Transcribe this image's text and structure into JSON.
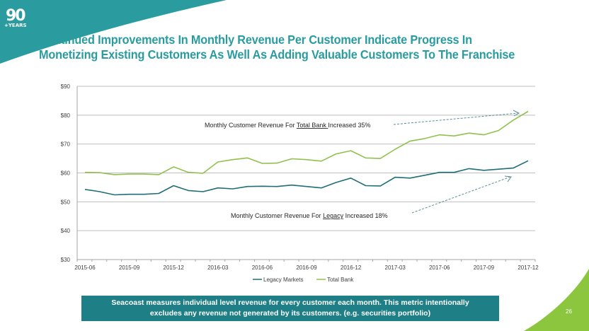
{
  "logo": {
    "number": "90",
    "suffix": "+YEARS"
  },
  "title": "Continued Improvements In Monthly Revenue Per Customer Indicate Progress In Monetizing Existing Customers As Well As Adding Valuable Customers To The Franchise",
  "colors": {
    "brand_teal": "#2a9ca0",
    "legacy_line": "#1f6e78",
    "total_line": "#92c04f",
    "note_bg": "#1f7f86",
    "accent_green": "#8cc63f"
  },
  "annotations": {
    "total": {
      "prefix": "Monthly Customer Revenue For ",
      "underlined": "Total Bank ",
      "suffix": "Increased  35%"
    },
    "legacy": {
      "prefix": "Monthly Customer Revenue For ",
      "underlined": "Legacy",
      "suffix": " Increased  18%"
    }
  },
  "note": {
    "line1": "Seacoast measures individual  level revenue for every customer each month.  This metric intentionally",
    "line2": "excludes any revenue not generated by its customers.  (e.g. securities portfolio)"
  },
  "page_number": "26",
  "chart_data": {
    "type": "line",
    "title": "",
    "xlabel": "",
    "ylabel": "",
    "ylim": [
      30,
      90
    ],
    "yticks": [
      "$30",
      "$40",
      "$50",
      "$60",
      "$70",
      "$80",
      "$90"
    ],
    "ytick_values": [
      30,
      40,
      50,
      60,
      70,
      80,
      90
    ],
    "xtick_labels": [
      "2015-06",
      "2015-09",
      "2015-12",
      "2016-03",
      "2016-06",
      "2016-09",
      "2016-12",
      "2017-03",
      "2017-06",
      "2017-09",
      "2017-12"
    ],
    "x": [
      "2015-06",
      "2015-07",
      "2015-08",
      "2015-09",
      "2015-10",
      "2015-11",
      "2015-12",
      "2016-01",
      "2016-02",
      "2016-03",
      "2016-04",
      "2016-05",
      "2016-06",
      "2016-07",
      "2016-08",
      "2016-09",
      "2016-10",
      "2016-11",
      "2016-12",
      "2017-01",
      "2017-02",
      "2017-03",
      "2017-04",
      "2017-05",
      "2017-06",
      "2017-07",
      "2017-08",
      "2017-09",
      "2017-10",
      "2017-11",
      "2017-12"
    ],
    "grid": true,
    "legend": "bottom",
    "series": [
      {
        "name": "Legacy Markets",
        "values": [
          54.3,
          53.5,
          52.4,
          52.6,
          52.6,
          52.9,
          55.6,
          53.9,
          53.5,
          54.8,
          54.5,
          55.3,
          55.4,
          55.3,
          55.8,
          55.3,
          54.8,
          56.7,
          58.2,
          55.6,
          55.5,
          58.5,
          58.2,
          59.2,
          60.2,
          60.2,
          61.5,
          60.9,
          61.3,
          61.7,
          64.2
        ]
      },
      {
        "name": "Total Bank",
        "values": [
          60.2,
          60.1,
          59.4,
          59.6,
          59.6,
          59.4,
          62.1,
          60.2,
          59.9,
          63.8,
          64.6,
          65.2,
          63.3,
          63.4,
          64.9,
          64.6,
          64.1,
          66.6,
          67.7,
          65.2,
          65.0,
          68.2,
          71.0,
          71.9,
          73.2,
          72.8,
          73.8,
          73.2,
          74.7,
          78.3,
          81.3
        ]
      }
    ]
  }
}
